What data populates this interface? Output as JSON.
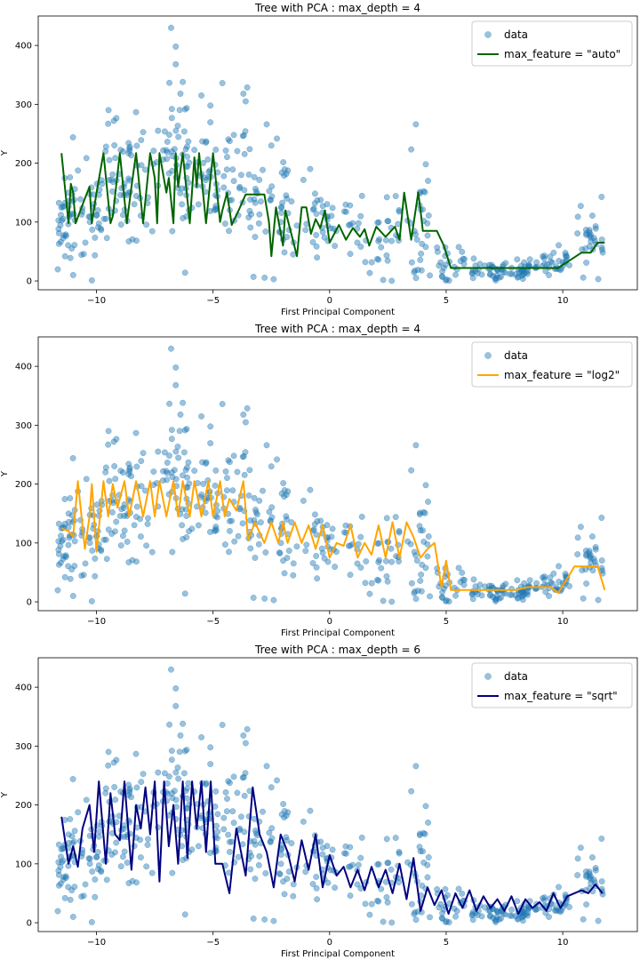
{
  "chart_data": [
    {
      "type": "scatter",
      "title": "Tree with PCA : max_depth = 4",
      "xlabel": "First Principal Component",
      "ylabel": "Y",
      "xlim": [
        -12.5,
        13.2
      ],
      "ylim": [
        -15,
        450
      ],
      "xticks": [
        -10,
        -5,
        0,
        5,
        10
      ],
      "yticks": [
        0,
        100,
        200,
        300,
        400
      ],
      "legend_position": "top-right",
      "series": [
        {
          "name": "data",
          "kind": "scatter",
          "color": "#1f77b4"
        },
        {
          "name": "max_feature = \"auto\"",
          "kind": "line",
          "color": "#006400",
          "x": [
            -11.5,
            -11.2,
            -11.1,
            -11.0,
            -10.9,
            -10.5,
            -10.3,
            -10.2,
            -10.0,
            -9.7,
            -9.4,
            -9.3,
            -9.0,
            -8.7,
            -8.5,
            -8.3,
            -8.0,
            -7.7,
            -7.5,
            -7.4,
            -7.3,
            -7.0,
            -6.9,
            -6.7,
            -6.6,
            -6.5,
            -6.3,
            -6.0,
            -5.8,
            -5.7,
            -5.6,
            -5.3,
            -5.0,
            -4.7,
            -4.6,
            -4.4,
            -4.2,
            -3.9,
            -3.6,
            -3.5,
            -2.8,
            -2.6,
            -2.5,
            -2.3,
            -2.0,
            -1.9,
            -1.4,
            -1.2,
            -1.0,
            -0.8,
            -0.6,
            -0.4,
            -0.2,
            0.0,
            0.4,
            0.7,
            1.0,
            1.3,
            1.5,
            1.7,
            2.0,
            2.4,
            2.8,
            3.0,
            3.2,
            3.5,
            3.8,
            3.9,
            4.0,
            4.6,
            4.9,
            5.2,
            5.6,
            6.0,
            6.5,
            7.0,
            7.5,
            8.0,
            8.5,
            9.0,
            9.4,
            9.8,
            10.3,
            10.8,
            11.2,
            11.5,
            11.8
          ],
          "y": [
            217,
            98,
            165,
            150,
            98,
            140,
            160,
            98,
            150,
            217,
            98,
            110,
            217,
            98,
            160,
            217,
            98,
            217,
            175,
            98,
            217,
            150,
            175,
            98,
            217,
            160,
            217,
            98,
            210,
            160,
            217,
            98,
            217,
            100,
            120,
            150,
            95,
            120,
            147,
            147,
            147,
            100,
            42,
            125,
            60,
            120,
            42,
            125,
            125,
            80,
            105,
            90,
            120,
            65,
            95,
            70,
            90,
            75,
            88,
            60,
            92,
            75,
            92,
            70,
            150,
            70,
            150,
            120,
            85,
            85,
            60,
            22,
            22,
            22,
            22,
            22,
            22,
            22,
            22,
            22,
            22,
            22,
            35,
            48,
            48,
            65,
            65
          ]
        }
      ]
    },
    {
      "type": "scatter",
      "title": "Tree with PCA : max_depth = 4",
      "xlabel": "First Principal Component",
      "ylabel": "Y",
      "xlim": [
        -12.5,
        13.2
      ],
      "ylim": [
        -15,
        450
      ],
      "xticks": [
        -10,
        -5,
        0,
        5,
        10
      ],
      "yticks": [
        0,
        100,
        200,
        300,
        400
      ],
      "legend_position": "top-right",
      "series": [
        {
          "name": "data",
          "kind": "scatter",
          "color": "#1f77b4"
        },
        {
          "name": "max_feature = \"log2\"",
          "kind": "line",
          "color": "#ffa500",
          "x": [
            -11.5,
            -11.2,
            -11.0,
            -10.8,
            -10.5,
            -10.3,
            -10.2,
            -10.0,
            -9.7,
            -9.5,
            -9.3,
            -9.1,
            -8.8,
            -8.6,
            -8.3,
            -8.0,
            -7.7,
            -7.5,
            -7.3,
            -7.0,
            -6.7,
            -6.5,
            -6.3,
            -6.0,
            -5.8,
            -5.5,
            -5.2,
            -5.0,
            -4.7,
            -4.5,
            -4.3,
            -4.0,
            -3.7,
            -3.5,
            -3.2,
            -2.8,
            -2.5,
            -2.2,
            -2.0,
            -1.8,
            -1.5,
            -1.2,
            -0.9,
            -0.6,
            -0.3,
            0.0,
            0.3,
            0.6,
            0.9,
            1.2,
            1.5,
            1.8,
            2.1,
            2.4,
            2.7,
            3.0,
            3.3,
            3.6,
            3.9,
            4.2,
            4.5,
            4.8,
            5.0,
            5.2,
            5.8,
            6.4,
            7.0,
            7.5,
            8.0,
            8.5,
            9.0,
            9.5,
            9.8,
            10.2,
            10.5,
            11.0,
            11.5,
            11.8
          ],
          "y": [
            125,
            120,
            110,
            205,
            90,
            145,
            200,
            85,
            205,
            145,
            200,
            160,
            205,
            145,
            205,
            145,
            205,
            145,
            205,
            145,
            205,
            145,
            205,
            145,
            205,
            145,
            205,
            145,
            205,
            145,
            175,
            155,
            205,
            105,
            135,
            100,
            135,
            100,
            135,
            100,
            135,
            100,
            130,
            90,
            130,
            75,
            100,
            95,
            130,
            75,
            100,
            80,
            130,
            75,
            135,
            75,
            135,
            110,
            75,
            90,
            100,
            25,
            70,
            20,
            20,
            20,
            20,
            20,
            20,
            25,
            25,
            25,
            15,
            40,
            60,
            60,
            60,
            20
          ]
        }
      ]
    },
    {
      "type": "scatter",
      "title": "Tree with PCA : max_depth = 6",
      "xlabel": "First Principal Component",
      "ylabel": "Y",
      "xlim": [
        -12.5,
        13.2
      ],
      "ylim": [
        -15,
        450
      ],
      "xticks": [
        -10,
        -5,
        0,
        5,
        10
      ],
      "yticks": [
        0,
        100,
        200,
        300,
        400
      ],
      "legend_position": "top-right",
      "series": [
        {
          "name": "data",
          "kind": "scatter",
          "color": "#1f77b4"
        },
        {
          "name": "max_feature = \"sqrt\"",
          "kind": "line",
          "color": "#000080",
          "x": [
            -11.5,
            -11.2,
            -11.0,
            -10.8,
            -10.6,
            -10.3,
            -10.1,
            -9.9,
            -9.6,
            -9.4,
            -9.2,
            -9.0,
            -8.8,
            -8.5,
            -8.3,
            -8.1,
            -7.9,
            -7.7,
            -7.5,
            -7.3,
            -7.1,
            -6.9,
            -6.7,
            -6.5,
            -6.3,
            -6.1,
            -5.9,
            -5.7,
            -5.5,
            -5.3,
            -5.1,
            -4.9,
            -4.6,
            -4.3,
            -4.0,
            -3.6,
            -3.3,
            -3.0,
            -2.7,
            -2.4,
            -2.1,
            -1.8,
            -1.5,
            -1.2,
            -0.9,
            -0.6,
            -0.3,
            0.0,
            0.3,
            0.6,
            0.9,
            1.2,
            1.5,
            1.8,
            2.1,
            2.4,
            2.7,
            3.0,
            3.3,
            3.6,
            3.9,
            4.2,
            4.5,
            4.8,
            5.1,
            5.4,
            5.7,
            6.0,
            6.3,
            6.6,
            6.9,
            7.2,
            7.5,
            7.8,
            8.1,
            8.4,
            8.7,
            9.0,
            9.3,
            9.6,
            9.9,
            10.2,
            10.5,
            10.8,
            11.1,
            11.4,
            11.7
          ],
          "y": [
            180,
            100,
            130,
            95,
            160,
            200,
            120,
            240,
            100,
            220,
            150,
            140,
            240,
            90,
            200,
            160,
            230,
            150,
            240,
            70,
            240,
            130,
            200,
            100,
            240,
            110,
            240,
            160,
            240,
            120,
            240,
            100,
            100,
            50,
            160,
            80,
            230,
            150,
            120,
            60,
            150,
            120,
            70,
            140,
            90,
            150,
            60,
            115,
            80,
            95,
            60,
            90,
            55,
            95,
            60,
            90,
            50,
            100,
            40,
            110,
            20,
            60,
            30,
            55,
            15,
            50,
            25,
            55,
            20,
            45,
            25,
            40,
            20,
            45,
            15,
            40,
            25,
            35,
            20,
            50,
            25,
            45,
            50,
            55,
            50,
            65,
            50
          ]
        }
      ]
    }
  ]
}
